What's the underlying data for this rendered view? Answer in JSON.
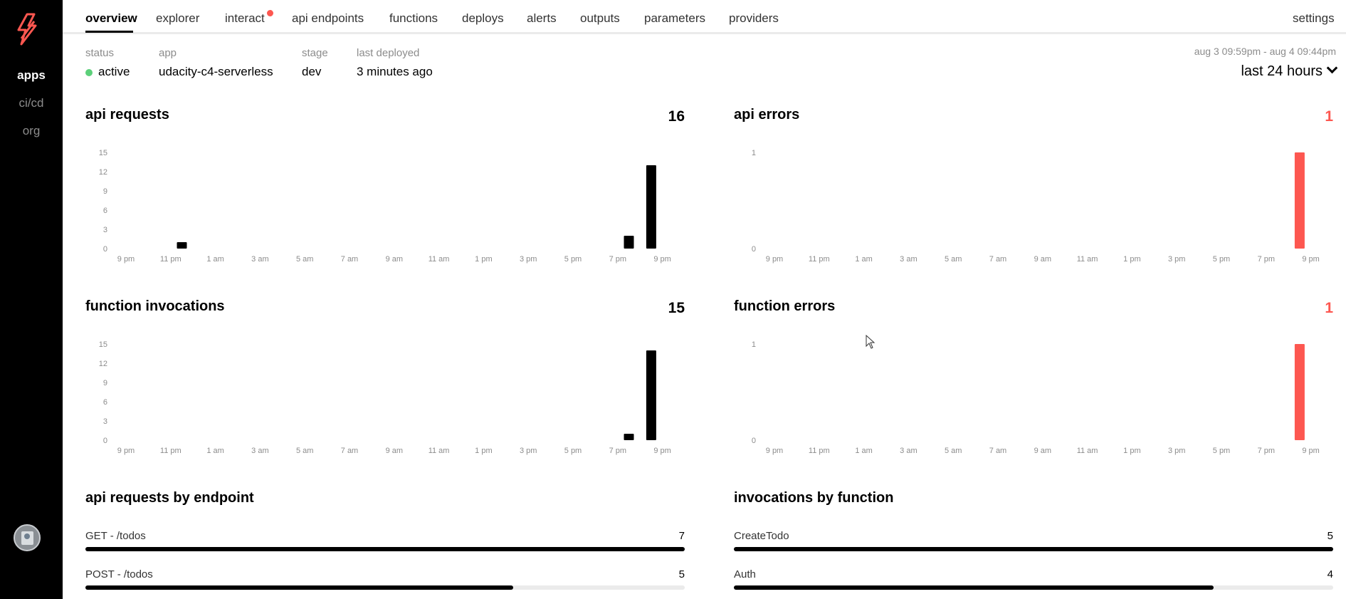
{
  "sidebar": {
    "items": [
      {
        "label": "apps",
        "active": true
      },
      {
        "label": "ci/cd",
        "active": false
      },
      {
        "label": "org",
        "active": false
      }
    ],
    "logo_icon": "serverless-bolt-icon",
    "avatar_icon": "user-avatar-icon"
  },
  "nav": {
    "tabs": [
      "overview",
      "explorer",
      "interact",
      "api endpoints",
      "functions",
      "deploys",
      "alerts",
      "outputs",
      "parameters",
      "providers"
    ],
    "active_tab": "overview",
    "settings_label": "settings"
  },
  "info": {
    "status_label": "status",
    "status_value": "active",
    "app_label": "app",
    "app_value": "udacity-c4-serverless",
    "stage_label": "stage",
    "stage_value": "dev",
    "deployed_label": "last deployed",
    "deployed_value": "3 minutes ago",
    "range_text": "aug 3 09:59pm - aug 4 09:44pm",
    "range_select": "last 24 hours"
  },
  "colors": {
    "accent": "#fd5750",
    "status_active": "#5cd07a",
    "bar_default": "#000000",
    "bar_error": "#fd5750"
  },
  "chart_data": [
    {
      "id": "api-requests",
      "type": "bar",
      "title": "api requests",
      "total": "16",
      "x_tick_labels": [
        "9 pm",
        "11 pm",
        "1 am",
        "3 am",
        "5 am",
        "7 am",
        "9 am",
        "11 am",
        "1 pm",
        "3 pm",
        "5 pm",
        "7 pm",
        "9 pm"
      ],
      "y_ticks": [
        "0",
        "3",
        "6",
        "9",
        "12",
        "15"
      ],
      "ylim": [
        0,
        15
      ],
      "bars": [
        {
          "hour_index": 3,
          "value": 1
        },
        {
          "hour_index": 23,
          "value": 2
        },
        {
          "hour_index": 24,
          "value": 13
        }
      ],
      "color": "#000000"
    },
    {
      "id": "api-errors",
      "type": "bar",
      "title": "api errors",
      "total": "1",
      "x_tick_labels": [
        "9 pm",
        "11 pm",
        "1 am",
        "3 am",
        "5 am",
        "7 am",
        "9 am",
        "11 am",
        "1 pm",
        "3 pm",
        "5 pm",
        "7 pm",
        "9 pm"
      ],
      "y_ticks": [
        "0",
        "1"
      ],
      "ylim": [
        0,
        1
      ],
      "bars": [
        {
          "hour_index": 24,
          "value": 1
        }
      ],
      "color": "#fd5750"
    },
    {
      "id": "function-invocations",
      "type": "bar",
      "title": "function invocations",
      "total": "15",
      "x_tick_labels": [
        "9 pm",
        "11 pm",
        "1 am",
        "3 am",
        "5 am",
        "7 am",
        "9 am",
        "11 am",
        "1 pm",
        "3 pm",
        "5 pm",
        "7 pm",
        "9 pm"
      ],
      "y_ticks": [
        "0",
        "3",
        "6",
        "9",
        "12",
        "15"
      ],
      "ylim": [
        0,
        15
      ],
      "bars": [
        {
          "hour_index": 23,
          "value": 1
        },
        {
          "hour_index": 24,
          "value": 14
        }
      ],
      "color": "#000000"
    },
    {
      "id": "function-errors",
      "type": "bar",
      "title": "function errors",
      "total": "1",
      "x_tick_labels": [
        "9 pm",
        "11 pm",
        "1 am",
        "3 am",
        "5 am",
        "7 am",
        "9 am",
        "11 am",
        "1 pm",
        "3 pm",
        "5 pm",
        "7 pm",
        "9 pm"
      ],
      "y_ticks": [
        "0",
        "1"
      ],
      "ylim": [
        0,
        1
      ],
      "bars": [
        {
          "hour_index": 24,
          "value": 1
        }
      ],
      "color": "#fd5750"
    }
  ],
  "breakdowns": {
    "endpoints": {
      "title": "api requests by endpoint",
      "max": 7,
      "items": [
        {
          "label": "GET - /todos",
          "value": "7"
        },
        {
          "label": "POST - /todos",
          "value": "5"
        }
      ]
    },
    "functions": {
      "title": "invocations by function",
      "max": 5,
      "items": [
        {
          "label": "CreateTodo",
          "value": "5"
        },
        {
          "label": "Auth",
          "value": "4"
        }
      ]
    }
  }
}
